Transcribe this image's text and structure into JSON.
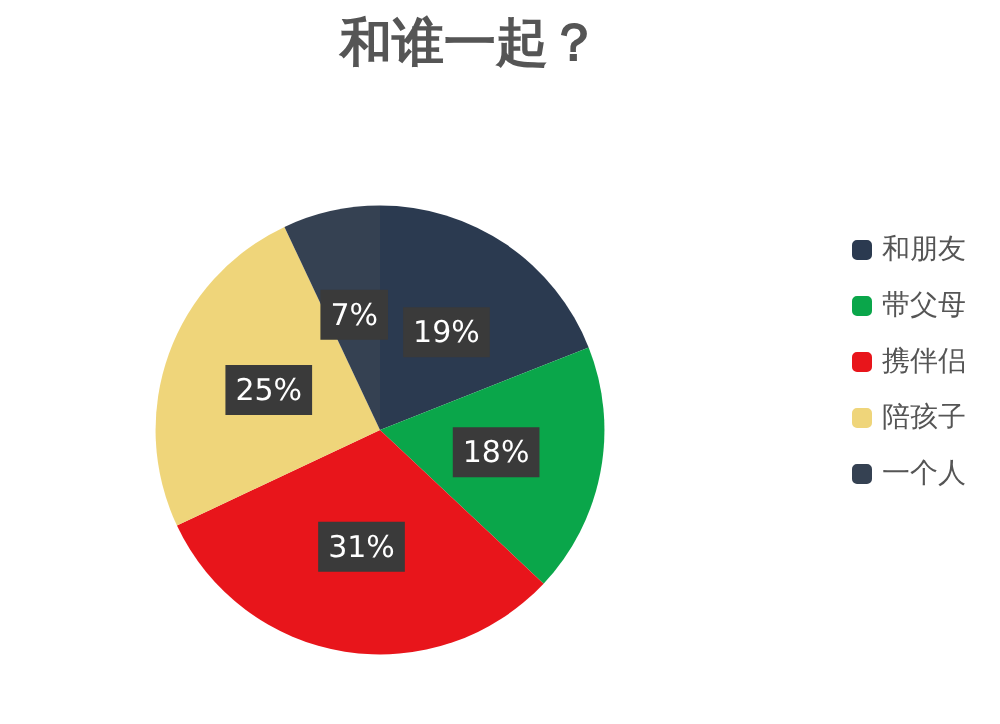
{
  "chart_data": {
    "type": "pie",
    "title": "和谁一起？",
    "categories": [
      "和朋友",
      "带父母",
      "携伴侣",
      "陪孩子",
      "一个人"
    ],
    "values": [
      19,
      18,
      31,
      25,
      7
    ],
    "value_labels": [
      "19%",
      "18%",
      "31%",
      "25%",
      "7%"
    ],
    "colors": [
      "#2b3a50",
      "#0aa64a",
      "#e8151b",
      "#efd57a",
      "#354152"
    ],
    "legend": "right"
  }
}
